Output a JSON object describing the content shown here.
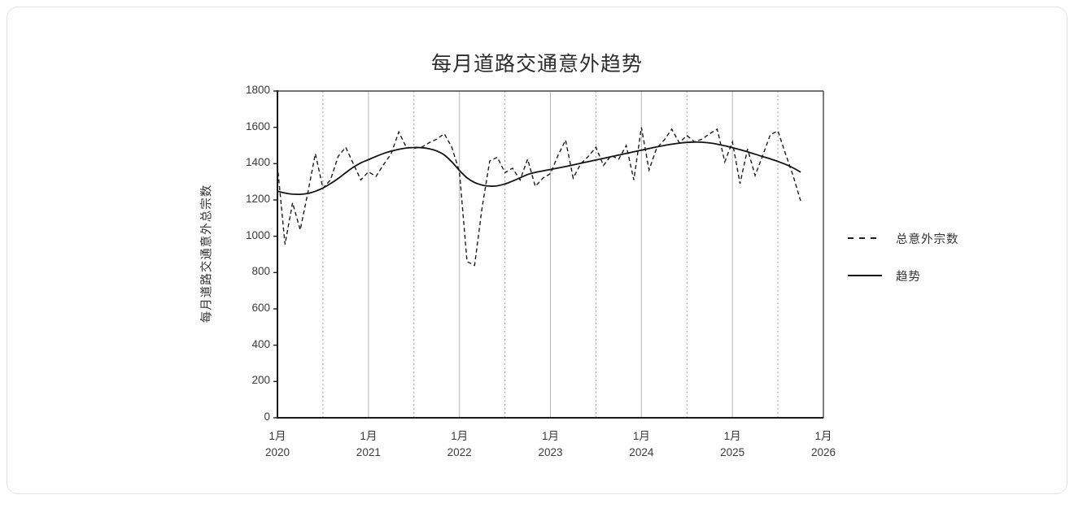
{
  "card": {
    "type": "chart-panel"
  },
  "chart_data": {
    "type": "line",
    "title": "每月道路交通意外趋势",
    "ylabel": "每月道路交通意外总宗数",
    "xlabel": "",
    "ylim": [
      0,
      1800
    ],
    "y_ticks": [
      0,
      200,
      400,
      600,
      800,
      1000,
      1200,
      1400,
      1600,
      1800
    ],
    "x_months_span": 72,
    "x_ticks": [
      {
        "month": "1月",
        "year": "2020",
        "month_index": 0
      },
      {
        "month": "1月",
        "year": "2021",
        "month_index": 12
      },
      {
        "month": "1月",
        "year": "2022",
        "month_index": 24
      },
      {
        "month": "1月",
        "year": "2023",
        "month_index": 36
      },
      {
        "month": "1月",
        "year": "2024",
        "month_index": 48
      },
      {
        "month": "1月",
        "year": "2025",
        "month_index": 60
      },
      {
        "month": "1月",
        "year": "2026",
        "month_index": 72
      }
    ],
    "x_major_gridline_month_indices": [
      12,
      24,
      36,
      48,
      60
    ],
    "x_minor_gridline_month_indices": [
      6,
      18,
      30,
      42,
      54,
      66
    ],
    "grid": "vertical-only",
    "legend_position": "right",
    "series": [
      {
        "name": "总意外宗数",
        "style": "dashed",
        "start_month": "2020-01",
        "end_month": "2025-10",
        "values": [
          1390,
          955,
          1185,
          1035,
          1240,
          1455,
          1265,
          1310,
          1440,
          1490,
          1400,
          1310,
          1355,
          1330,
          1395,
          1455,
          1575,
          1490,
          1485,
          1490,
          1515,
          1535,
          1565,
          1490,
          1355,
          860,
          840,
          1160,
          1415,
          1435,
          1350,
          1375,
          1310,
          1425,
          1275,
          1320,
          1345,
          1445,
          1530,
          1320,
          1400,
          1440,
          1490,
          1390,
          1445,
          1425,
          1500,
          1310,
          1600,
          1365,
          1485,
          1530,
          1590,
          1515,
          1555,
          1520,
          1535,
          1565,
          1590,
          1410,
          1520,
          1290,
          1480,
          1335,
          1445,
          1560,
          1580,
          1455,
          1335,
          1195
        ]
      },
      {
        "name": "趋势",
        "style": "solid",
        "start_month": "2020-01",
        "end_month": "2025-10",
        "values": [
          1248,
          1238,
          1232,
          1231,
          1236,
          1248,
          1266,
          1290,
          1318,
          1350,
          1380,
          1404,
          1422,
          1440,
          1456,
          1469,
          1479,
          1486,
          1489,
          1488,
          1482,
          1470,
          1448,
          1410,
          1362,
          1322,
          1296,
          1282,
          1276,
          1278,
          1288,
          1304,
          1322,
          1340,
          1352,
          1360,
          1368,
          1376,
          1384,
          1393,
          1402,
          1411,
          1420,
          1429,
          1438,
          1447,
          1456,
          1465,
          1474,
          1483,
          1492,
          1500,
          1507,
          1513,
          1517,
          1519,
          1518,
          1514,
          1507,
          1498,
          1488,
          1477,
          1465,
          1452,
          1439,
          1426,
          1412,
          1396,
          1377,
          1353
        ]
      }
    ],
    "colors": {
      "series_line": "#1c1c1c",
      "trend_line": "#141414",
      "axis": "#1a1a1a",
      "plot_border": "#444444",
      "grid_major": "#b5b5b5",
      "grid_minor": "#9d9d9d",
      "text": "#3a3a3a",
      "card_border": "#dfe3e6",
      "background": "#ffffff"
    }
  }
}
